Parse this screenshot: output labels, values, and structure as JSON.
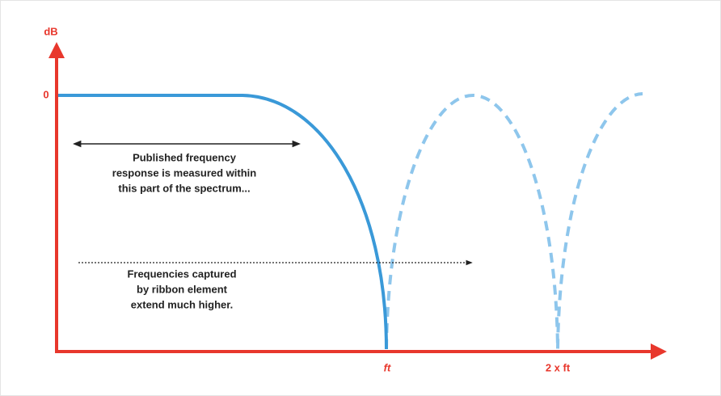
{
  "axis": {
    "y_label": "dB",
    "zero_label": "0",
    "x_label_1": "ft",
    "x_label_2": "2 x ft"
  },
  "annotations": [
    {
      "lines": [
        "Published frequency",
        "response is measured within",
        "this part of the spectrum..."
      ]
    },
    {
      "lines": [
        "Frequencies captured",
        "by ribbon element",
        "extend much higher."
      ]
    }
  ]
}
